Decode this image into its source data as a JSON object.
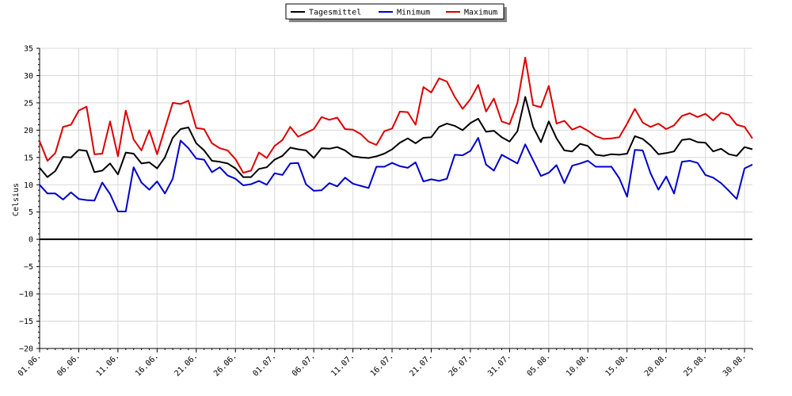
{
  "chart_data": {
    "type": "line",
    "title": "",
    "xlabel": "",
    "ylabel": "Celsius",
    "ylim": [
      -20,
      35
    ],
    "yticks": [
      -20,
      -15,
      -10,
      -5,
      0,
      5,
      10,
      15,
      20,
      25,
      30,
      35
    ],
    "grid": true,
    "legend_position": "top-center",
    "x": [
      "01.06.",
      "02.06.",
      "03.06.",
      "04.06.",
      "05.06.",
      "06.06.",
      "07.06.",
      "08.06.",
      "09.06.",
      "10.06.",
      "11.06.",
      "12.06.",
      "13.06.",
      "14.06.",
      "15.06.",
      "16.06.",
      "17.06.",
      "18.06.",
      "19.06.",
      "20.06.",
      "21.06.",
      "22.06.",
      "23.06.",
      "24.06.",
      "25.06.",
      "26.06.",
      "27.06.",
      "28.06.",
      "29.06.",
      "30.06.",
      "01.07.",
      "02.07.",
      "03.07.",
      "04.07.",
      "05.07.",
      "06.07.",
      "07.07.",
      "08.07.",
      "09.07.",
      "10.07.",
      "11.07.",
      "12.07.",
      "13.07.",
      "14.07.",
      "15.07.",
      "16.07.",
      "17.07.",
      "18.07.",
      "19.07.",
      "20.07.",
      "21.07.",
      "22.07.",
      "23.07.",
      "24.07.",
      "25.07.",
      "26.07.",
      "27.07.",
      "28.07.",
      "29.07.",
      "30.07.",
      "31.07.",
      "01.08.",
      "02.08.",
      "03.08.",
      "04.08.",
      "05.08.",
      "06.08.",
      "07.08.",
      "08.08.",
      "09.08.",
      "10.08.",
      "11.08.",
      "12.08.",
      "13.08.",
      "14.08.",
      "15.08.",
      "16.08.",
      "17.08.",
      "18.08.",
      "19.08.",
      "20.08.",
      "21.08.",
      "22.08.",
      "23.08.",
      "24.08.",
      "25.08.",
      "26.08.",
      "27.08.",
      "28.08.",
      "29.08.",
      "30.08.",
      "31.08."
    ],
    "xtick_labels": [
      "01.06.",
      "06.06.",
      "11.06.",
      "16.06.",
      "21.06.",
      "26.06.",
      "01.07.",
      "06.07.",
      "11.07.",
      "16.07.",
      "21.07.",
      "26.07.",
      "31.07.",
      "05.08.",
      "10.08.",
      "15.08.",
      "20.08.",
      "25.08.",
      "30.08."
    ],
    "series": [
      {
        "name": "Tagesmittel",
        "color": "#000000",
        "values": [
          13.1,
          11.4,
          12.5,
          15.1,
          15.0,
          16.4,
          16.2,
          12.3,
          12.6,
          13.9,
          11.9,
          15.9,
          15.7,
          13.9,
          14.1,
          13.0,
          15.0,
          18.6,
          20.2,
          20.5,
          17.6,
          16.3,
          14.4,
          14.2,
          13.9,
          13.0,
          11.4,
          11.4,
          12.9,
          13.2,
          14.6,
          15.3,
          16.8,
          16.5,
          16.3,
          14.9,
          16.7,
          16.6,
          16.9,
          16.3,
          15.2,
          15.0,
          14.9,
          15.2,
          15.7,
          16.5,
          17.7,
          18.5,
          17.6,
          18.6,
          18.7,
          20.6,
          21.2,
          20.8,
          20.0,
          21.3,
          22.1,
          19.7,
          19.9,
          18.7,
          17.9,
          19.8,
          26.1,
          20.6,
          17.8,
          21.6,
          18.5,
          16.3,
          16.1,
          17.5,
          17.1,
          15.5,
          15.3,
          15.6,
          15.5,
          15.7,
          18.9,
          18.4,
          17.2,
          15.6,
          15.8,
          16.1,
          18.2,
          18.4,
          17.8,
          17.7,
          16.1,
          16.6,
          15.6,
          15.3,
          16.9,
          16.5
        ]
      },
      {
        "name": "Minimum",
        "color": "#0000cc",
        "values": [
          10.0,
          8.4,
          8.4,
          7.3,
          8.6,
          7.4,
          7.2,
          7.1,
          10.4,
          8.3,
          5.1,
          5.1,
          13.2,
          10.4,
          9.1,
          10.6,
          8.4,
          11.1,
          18.1,
          16.7,
          14.8,
          14.6,
          12.3,
          13.2,
          11.7,
          11.1,
          9.9,
          10.1,
          10.7,
          10.0,
          12.1,
          11.8,
          13.9,
          14.0,
          10.1,
          8.9,
          9.0,
          10.3,
          9.7,
          11.3,
          10.2,
          9.8,
          9.4,
          13.3,
          13.3,
          14.0,
          13.4,
          13.1,
          14.1,
          10.6,
          11.0,
          10.7,
          11.1,
          15.5,
          15.4,
          16.2,
          18.6,
          13.7,
          12.6,
          15.5,
          14.7,
          13.9,
          17.4,
          14.5,
          11.6,
          12.2,
          13.6,
          10.3,
          13.5,
          13.9,
          14.4,
          13.3,
          13.3,
          13.3,
          11.2,
          7.8,
          16.4,
          16.3,
          12.1,
          9.1,
          11.5,
          8.4,
          14.2,
          14.4,
          14.0,
          11.8,
          11.3,
          10.3,
          8.9,
          7.4,
          13.0,
          13.7
        ]
      },
      {
        "name": "Maximum",
        "color": "#dd0000",
        "values": [
          18.0,
          14.4,
          15.8,
          20.6,
          21.0,
          23.6,
          24.3,
          15.6,
          15.7,
          21.6,
          15.2,
          23.6,
          18.3,
          16.3,
          20.0,
          15.6,
          20.3,
          25.0,
          24.8,
          25.4,
          20.4,
          20.2,
          17.6,
          16.7,
          16.3,
          14.7,
          12.2,
          12.6,
          15.9,
          14.9,
          17.1,
          18.2,
          20.6,
          18.8,
          19.5,
          20.2,
          22.4,
          21.9,
          22.3,
          20.2,
          20.1,
          19.3,
          17.9,
          17.3,
          19.8,
          20.3,
          23.4,
          23.3,
          21.0,
          27.9,
          26.9,
          29.5,
          28.9,
          26.1,
          23.9,
          25.7,
          28.3,
          23.4,
          25.8,
          21.6,
          21.1,
          25.0,
          33.3,
          24.6,
          24.2,
          28.1,
          21.2,
          21.7,
          20.1,
          20.7,
          19.9,
          18.9,
          18.4,
          18.5,
          18.7,
          21.2,
          23.9,
          21.4,
          20.6,
          21.2,
          20.2,
          20.9,
          22.6,
          23.1,
          22.4,
          23.0,
          21.8,
          23.2,
          22.8,
          21.0,
          20.6,
          18.5
        ]
      }
    ]
  }
}
